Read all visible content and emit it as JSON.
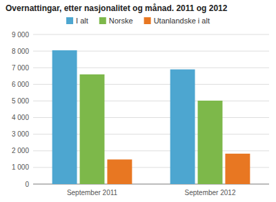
{
  "chart_data": {
    "type": "bar",
    "title": "Overnattingar, etter nasjonalitet og månad. 2011 og 2012",
    "categories": [
      "September 2011",
      "September 2012"
    ],
    "series": [
      {
        "name": "I alt",
        "color": "#4da6d0",
        "values": [
          8050,
          6900
        ]
      },
      {
        "name": "Norske",
        "color": "#7db84a",
        "values": [
          6600,
          5020
        ]
      },
      {
        "name": "Utanlandske i alt",
        "color": "#e87722",
        "values": [
          1480,
          1830
        ]
      }
    ],
    "ylim": [
      0,
      9000
    ],
    "yticks": [
      0,
      {
        "value": 1000,
        "label": "1 000"
      },
      {
        "value": 2000,
        "label": "2 000"
      },
      {
        "value": 3000,
        "label": "3 000"
      },
      {
        "value": 4000,
        "label": "4 000"
      },
      {
        "value": 5000,
        "label": "5 000"
      },
      {
        "value": 6000,
        "label": "6 000"
      },
      {
        "value": 7000,
        "label": "7 000"
      },
      {
        "value": 8000,
        "label": "8 000"
      },
      {
        "value": 9000,
        "label": "9 000"
      }
    ],
    "grid": true,
    "legend": "top"
  }
}
